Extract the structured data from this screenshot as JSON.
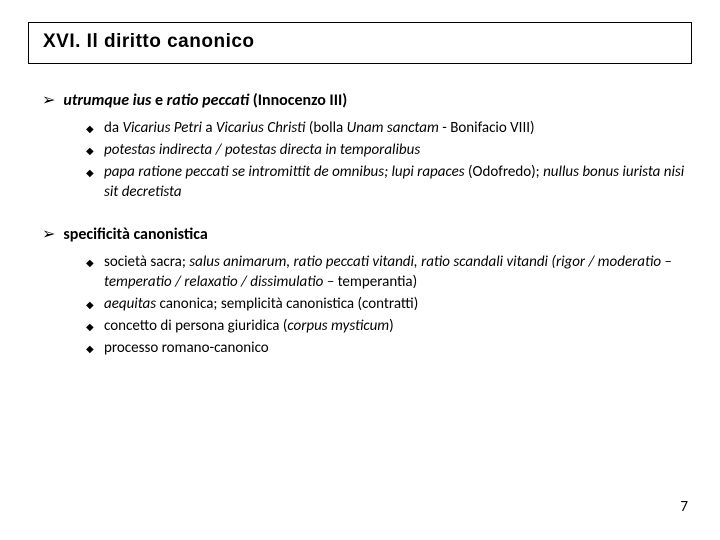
{
  "colors": {
    "background": "#ffffff",
    "text": "#000000",
    "border": "#000000"
  },
  "typography": {
    "title_family": "Verdana",
    "body_family": "Calibri",
    "title_size_pt": 19,
    "section_size_pt": 16,
    "bullet_size_pt": 15,
    "pagenum_size_pt": 15
  },
  "title": "XVI. Il diritto canonico",
  "page_number": "7",
  "sections": [
    {
      "heading_runs": [
        {
          "t": "utrumque ius",
          "style": "bi"
        },
        {
          "t": " e ",
          "style": "b"
        },
        {
          "t": "ratio peccati",
          "style": "bi"
        },
        {
          "t": " (Innocenzo III)",
          "style": "b"
        }
      ],
      "bullets": [
        [
          {
            "t": "da ",
            "style": ""
          },
          {
            "t": "Vicarius Petri",
            "style": "i"
          },
          {
            "t": " a ",
            "style": ""
          },
          {
            "t": "Vicarius Christi",
            "style": "i"
          },
          {
            "t": "  (bolla ",
            "style": ""
          },
          {
            "t": "Unam sanctam",
            "style": "i"
          },
          {
            "t": " - Bonifacio VIII)",
            "style": ""
          }
        ],
        [
          {
            "t": "potestas indirecta / potestas directa in temporalibus",
            "style": "i"
          }
        ],
        [
          {
            "t": "papa ratione peccati se intromittit de omnibus; lupi rapaces ",
            "style": "i"
          },
          {
            "t": "(Odofredo); ",
            "style": ""
          },
          {
            "t": "nullus bonus iurista nisi sit decretista",
            "style": "i"
          }
        ]
      ]
    },
    {
      "heading_runs": [
        {
          "t": "specificità canonistica",
          "style": "b"
        }
      ],
      "bullets": [
        [
          {
            "t": "società sacra; ",
            "style": ""
          },
          {
            "t": "salus animarum, ratio peccati vitandi, ratio scandali vitandi (rigor / moderatio – temperatio / relaxatio / dissimulatio – ",
            "style": "i"
          },
          {
            "t": "temperantia)",
            "style": ""
          }
        ],
        [
          {
            "t": "aequitas",
            "style": "i"
          },
          {
            "t": " canonica; semplicità canonistica (contratti)",
            "style": ""
          }
        ],
        [
          {
            "t": "concetto di persona giuridica (",
            "style": ""
          },
          {
            "t": "corpus mysticum",
            "style": "i"
          },
          {
            "t": ")",
            "style": ""
          }
        ],
        [
          {
            "t": "processo romano-canonico",
            "style": ""
          }
        ]
      ]
    }
  ]
}
